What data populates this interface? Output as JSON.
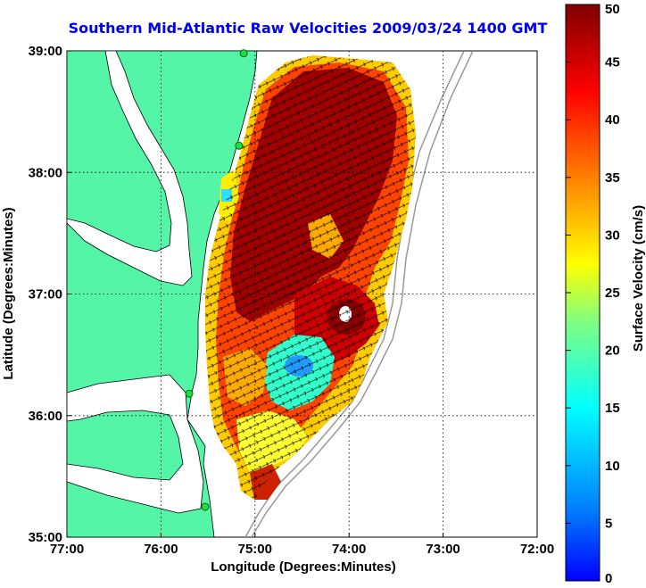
{
  "title": "Southern Mid-Atlantic Raw Velocities 2009/03/24 1400 GMT",
  "colors": {
    "land": "#55f5a8",
    "coast": "#000000",
    "bathymetry": "#999999",
    "station": "#22dd44"
  },
  "map": {
    "xlabel": "Longitude (Degrees:Minutes)",
    "ylabel": "Latitude (Degrees:Minutes)",
    "x_ticks": [
      "77:00",
      "76:00",
      "75:00",
      "74:00",
      "73:00",
      "72:00"
    ],
    "y_ticks": [
      "39:00",
      "38:00",
      "37:00",
      "36:00",
      "35:00"
    ],
    "xlim": [
      -77,
      -72
    ],
    "ylim": [
      35,
      39
    ],
    "grid": true
  },
  "colorbar": {
    "label": "Surface Velocity (cm/s)",
    "ticks": [
      "50",
      "45",
      "40",
      "35",
      "30",
      "25",
      "20",
      "15",
      "10",
      "5",
      "0"
    ],
    "range": [
      0,
      50
    ],
    "colormap": "jet"
  },
  "stations": [
    {
      "lon": -75.12,
      "lat": 38.98
    },
    {
      "lon": -75.17,
      "lat": 38.22
    },
    {
      "lon": -75.7,
      "lat": 36.18
    },
    {
      "lon": -75.53,
      "lat": 35.25
    }
  ]
}
